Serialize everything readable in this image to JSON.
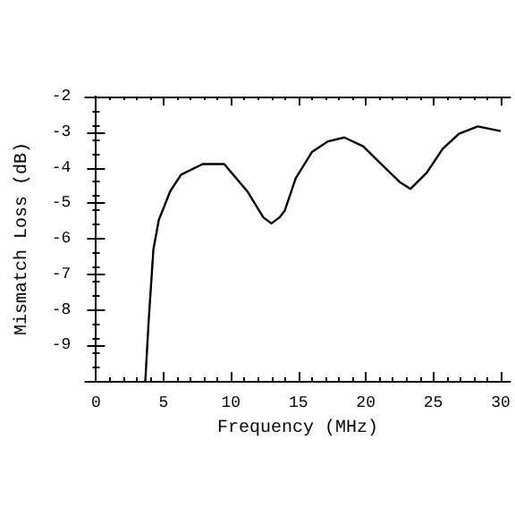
{
  "chart_data": {
    "type": "line",
    "xlabel": "Frequency (MHz)",
    "ylabel": "Mismatch Loss (dB)",
    "xlim": [
      -0.8,
      30.7
    ],
    "xticks": [
      0,
      5,
      10,
      15,
      20,
      25,
      30
    ],
    "ylim": [
      -10,
      -2
    ],
    "yticks": [
      -9,
      -8,
      -7,
      -6,
      -5,
      -4,
      -3,
      -2
    ],
    "grid": false,
    "marker": "none",
    "line_style": "solid",
    "series": [
      {
        "color": "#000000",
        "x": [
          3.65,
          3.9,
          4.25,
          4.65,
          5.5,
          6.3,
          7.9,
          9.5,
          11.2,
          12.4,
          13.0,
          13.6,
          14.0,
          14.8,
          16.0,
          17.2,
          18.4,
          19.8,
          21.3,
          22.5,
          23.3,
          24.5,
          25.7,
          26.9,
          28.3,
          30.0
        ],
        "values": [
          -10,
          -8.3,
          -6.3,
          -5.47,
          -4.66,
          -4.2,
          -3.9,
          -3.9,
          -4.66,
          -5.4,
          -5.57,
          -5.4,
          -5.2,
          -4.3,
          -3.56,
          -3.26,
          -3.15,
          -3.4,
          -3.96,
          -4.4,
          -4.6,
          -4.15,
          -3.47,
          -3.05,
          -2.84,
          -2.97
        ]
      }
    ]
  }
}
